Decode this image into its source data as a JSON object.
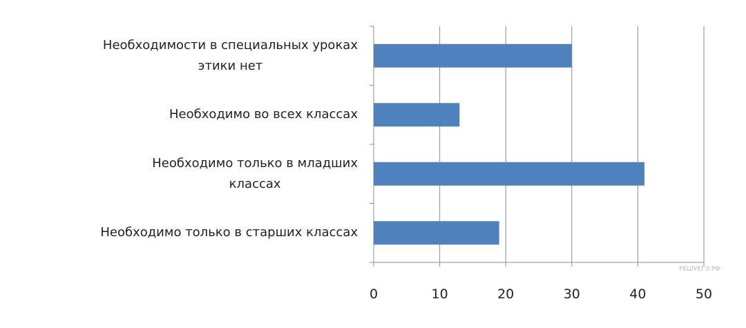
{
  "chart_data": {
    "type": "bar",
    "orientation": "horizontal",
    "categories": [
      "Необходимости  в специальных уроках\nэтики  нет",
      "Необходимо  во всех классах",
      "Необходимо  только в младших\nклассах",
      "Необходимо  только в старших классах"
    ],
    "values": [
      30,
      13,
      41,
      19
    ],
    "color": "#4f81bd",
    "xlim": [
      0,
      50
    ],
    "xticks": [
      0,
      10,
      20,
      30,
      40,
      50
    ],
    "grid": true,
    "watermark": "РЕШУЕГЭ.РФ"
  }
}
